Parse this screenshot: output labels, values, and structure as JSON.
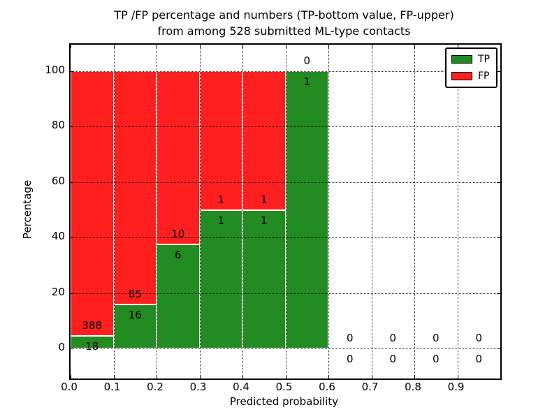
{
  "chart_data": {
    "type": "bar",
    "stacked": true,
    "title_line1": "TP /FP percentage and numbers (TP-bottom value, FP-upper)",
    "title_line2": "from among 528 submitted ML-type contacts",
    "xlabel": "Predicted probability",
    "ylabel": "Percentage",
    "total_contacts": 528,
    "bin_width": 0.1,
    "bin_starts": [
      0.0,
      0.1,
      0.2,
      0.3,
      0.4,
      0.5,
      0.6,
      0.7,
      0.8,
      0.9
    ],
    "series": [
      {
        "name": "TP",
        "color": "#228b22",
        "counts": [
          18,
          16,
          6,
          1,
          1,
          1,
          0,
          0,
          0,
          0
        ]
      },
      {
        "name": "FP",
        "color": "#ff1f1f",
        "counts": [
          388,
          85,
          10,
          1,
          1,
          0,
          0,
          0,
          0,
          0
        ]
      }
    ],
    "tp_percent_by_bin": [
      4.43,
      15.84,
      37.5,
      50.0,
      50.0,
      100.0,
      0.0,
      0.0,
      0.0,
      0.0
    ],
    "x_tick_labels": [
      "0.0",
      "0.1",
      "0.2",
      "0.3",
      "0.4",
      "0.5",
      "0.6",
      "0.7",
      "0.8",
      "0.9"
    ],
    "x_tick_values": [
      0.0,
      0.1,
      0.2,
      0.3,
      0.4,
      0.5,
      0.6,
      0.7,
      0.8,
      0.9
    ],
    "y_tick_labels": [
      "0",
      "20",
      "40",
      "60",
      "80",
      "100"
    ],
    "y_tick_values": [
      0,
      20,
      40,
      60,
      80,
      100
    ],
    "xlim": [
      0.0,
      1.0
    ],
    "ylim": [
      -10.8,
      109.6
    ],
    "grid": true,
    "grid_style": "dotted",
    "legend": {
      "position": "upper right",
      "entries": [
        {
          "label": "TP",
          "color": "#228b22"
        },
        {
          "label": "FP",
          "color": "#ff1f1f"
        }
      ]
    }
  }
}
